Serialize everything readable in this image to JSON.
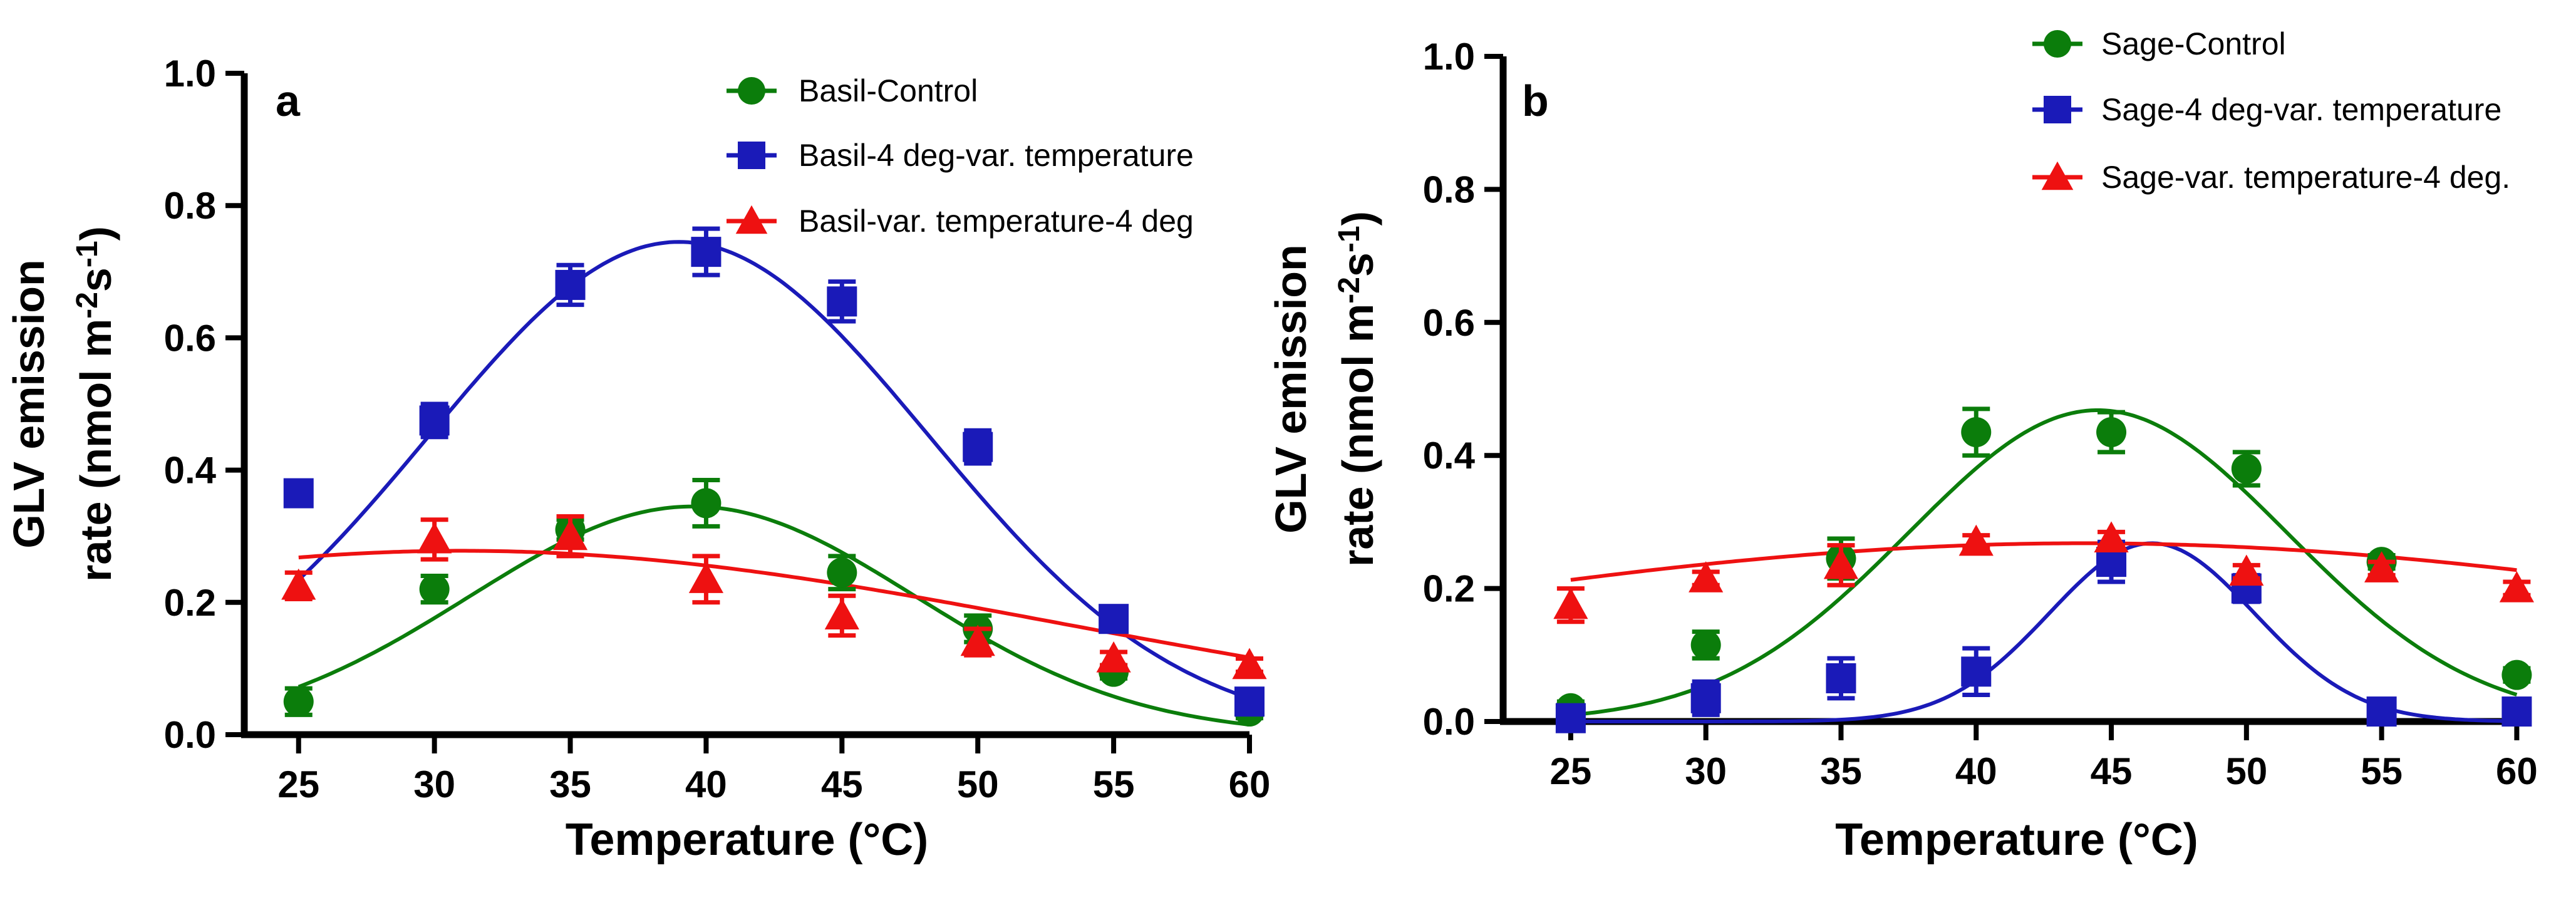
{
  "chart_data": [
    {
      "panel": "a",
      "type": "scatter",
      "xlabel": "Temperature (°C)",
      "ylabel_line1": "GLV emission",
      "ylabel_line2_prefix": "rate (nmol m",
      "ylabel_sup1": "-2",
      "ylabel_mid": "s",
      "ylabel_sup2": "-1",
      "ylabel_suffix": ")",
      "xlim": [
        23,
        60
      ],
      "ylim": [
        0,
        1.0
      ],
      "xticks": [
        25,
        30,
        35,
        40,
        45,
        50,
        55,
        60
      ],
      "yticks": [
        "0.0",
        "0.2",
        "0.4",
        "0.6",
        "0.8",
        "1.0"
      ],
      "legend_position": "top-right",
      "series": [
        {
          "name": "Basil-Control",
          "color": "#0b7d0b",
          "marker": "circle",
          "x": [
            25,
            30,
            35,
            40,
            45,
            50,
            55,
            60
          ],
          "y": [
            0.05,
            0.22,
            0.31,
            0.35,
            0.245,
            0.16,
            0.095,
            0.035
          ],
          "err": [
            0.02,
            0.02,
            0.015,
            0.035,
            0.025,
            0.02,
            0.01,
            0.01
          ],
          "fit": {
            "a": 0.345,
            "mu": 39.5,
            "sigma": 8.2
          }
        },
        {
          "name": "Basil-4 deg-var. temperature",
          "color": "#1a1ab8",
          "marker": "square",
          "x": [
            25,
            30,
            35,
            40,
            45,
            50,
            55,
            60
          ],
          "y": [
            0.365,
            0.475,
            0.68,
            0.73,
            0.655,
            0.435,
            0.175,
            0.05
          ],
          "err": [
            0.015,
            0.025,
            0.03,
            0.035,
            0.03,
            0.025,
            0.01,
            0.01
          ],
          "fit": {
            "a": 0.745,
            "mu": 39.0,
            "sigma": 9.2
          }
        },
        {
          "name": "Basil-var. temperature-4 deg",
          "color": "#ee1111",
          "marker": "triangle",
          "x": [
            25,
            30,
            35,
            40,
            45,
            50,
            55,
            60
          ],
          "y": [
            0.225,
            0.295,
            0.3,
            0.235,
            0.18,
            0.14,
            0.115,
            0.105
          ],
          "err": [
            0.02,
            0.03,
            0.03,
            0.035,
            0.03,
            0.02,
            0.01,
            0.01
          ],
          "fit": {
            "a": 0.278,
            "mu": 31.0,
            "sigma": 22.0
          }
        }
      ]
    },
    {
      "panel": "b",
      "type": "scatter",
      "xlabel": "Temperature (°C)",
      "ylabel_line1": "GLV emission",
      "ylabel_line2_prefix": "rate (nmol m",
      "ylabel_sup1": "-2",
      "ylabel_mid": "s",
      "ylabel_sup2": "-1",
      "ylabel_suffix": ")",
      "xlim": [
        22.5,
        60.5
      ],
      "ylim": [
        0,
        1.0
      ],
      "xticks": [
        25,
        30,
        35,
        40,
        45,
        50,
        55,
        60
      ],
      "yticks": [
        "0.0",
        "0.2",
        "0.4",
        "0.6",
        "0.8",
        "1.0"
      ],
      "legend_position": "top-right",
      "series": [
        {
          "name": "Sage-Control",
          "color": "#0b7d0b",
          "marker": "circle",
          "x": [
            25,
            30,
            35,
            40,
            45,
            50,
            55,
            60
          ],
          "y": [
            0.02,
            0.115,
            0.245,
            0.435,
            0.435,
            0.38,
            0.24,
            0.07
          ],
          "err": [
            0.01,
            0.02,
            0.03,
            0.035,
            0.03,
            0.025,
            0.01,
            0.01
          ],
          "fit": {
            "a": 0.468,
            "mu": 44.5,
            "sigma": 7.0
          }
        },
        {
          "name": "Sage-4 deg-var. temperature",
          "color": "#1a1ab8",
          "marker": "square",
          "x": [
            25,
            30,
            35,
            40,
            45,
            50,
            55,
            60
          ],
          "y": [
            0.005,
            0.035,
            0.065,
            0.075,
            0.24,
            0.2,
            0.015,
            0.015
          ],
          "err": [
            0.01,
            0.025,
            0.03,
            0.035,
            0.03,
            0.02,
            0.01,
            0.01
          ],
          "fit": {
            "a": 0.268,
            "mu": 46.5,
            "sigma": 3.8
          }
        },
        {
          "name": "Sage-var. temperature-4 deg.",
          "color": "#ee1111",
          "marker": "triangle",
          "x": [
            25,
            30,
            35,
            40,
            45,
            50,
            55,
            60
          ],
          "y": [
            0.175,
            0.215,
            0.235,
            0.27,
            0.275,
            0.225,
            0.23,
            0.2
          ],
          "err": [
            0.025,
            0.01,
            0.03,
            0.01,
            0.01,
            0.01,
            0.01,
            0.01
          ],
          "fit": {
            "a": 0.268,
            "mu": 44.0,
            "sigma": 28.0
          }
        }
      ]
    }
  ]
}
